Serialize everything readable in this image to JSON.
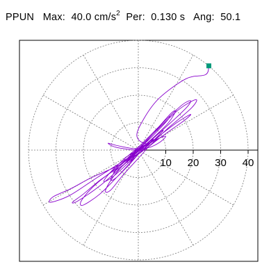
{
  "header": {
    "station": "PPUN",
    "max_label": "Max:",
    "max_value": "40.0",
    "max_unit": "cm/s",
    "max_exp": "2",
    "per_label": "Per:",
    "per_value": "0.130 s",
    "ang_label": "Ang:",
    "ang_value": "50.1"
  },
  "chart_data": {
    "type": "scatter",
    "title": "",
    "radial_ticks": [
      "10",
      "20",
      "30",
      "40"
    ],
    "r_max": 40,
    "grid": true,
    "grid_rings": [
      10,
      20,
      30,
      40
    ],
    "grid_spoke_step_deg": 30,
    "series": [
      {
        "color": "#8800cc",
        "peak_marker": {
          "x": 25.7,
          "y": 30.7,
          "color": "#00997a"
        },
        "points": [
          [
            25.7,
            30.7
          ],
          [
            24.5,
            27.5
          ],
          [
            17.4,
            26.0
          ],
          [
            7.6,
            18.9
          ],
          [
            2.0,
            11.4
          ],
          [
            -0.5,
            5.0
          ],
          [
            4.0,
            2.5
          ],
          [
            12.0,
            9.0
          ],
          [
            19.5,
            15.5
          ],
          [
            21.0,
            18.4
          ],
          [
            15.0,
            15.0
          ],
          [
            7.0,
            7.5
          ],
          [
            0.0,
            0.5
          ],
          [
            -7.0,
            -6.0
          ],
          [
            -14.0,
            -11.0
          ],
          [
            -20.0,
            -16.0
          ],
          [
            -24.0,
            -19.0
          ],
          [
            -22.0,
            -18.5
          ],
          [
            -14.0,
            -13.0
          ],
          [
            -6.0,
            -6.0
          ],
          [
            1.0,
            0.5
          ],
          [
            7.0,
            6.0
          ],
          [
            11.0,
            10.0
          ],
          [
            13.5,
            14.0
          ],
          [
            12.0,
            13.5
          ],
          [
            7.0,
            8.0
          ],
          [
            1.0,
            2.0
          ],
          [
            -6.0,
            -4.0
          ],
          [
            -11.0,
            -9.0
          ],
          [
            -12.5,
            -11.5
          ],
          [
            -9.0,
            -9.5
          ],
          [
            -3.0,
            -4.0
          ],
          [
            3.0,
            2.0
          ],
          [
            9.0,
            7.5
          ],
          [
            14.0,
            12.0
          ],
          [
            18.0,
            16.0
          ],
          [
            19.0,
            18.0
          ],
          [
            16.0,
            16.5
          ],
          [
            10.0,
            11.0
          ],
          [
            3.0,
            4.0
          ],
          [
            -4.0,
            -3.0
          ],
          [
            -10.0,
            -8.0
          ],
          [
            -15.0,
            -12.0
          ],
          [
            -18.5,
            -15.5
          ],
          [
            -21.0,
            -19.0
          ],
          [
            -20.0,
            -20.0
          ],
          [
            -14.0,
            -16.0
          ],
          [
            -7.0,
            -9.0
          ],
          [
            0.0,
            -1.5
          ],
          [
            6.0,
            4.0
          ],
          [
            9.0,
            7.0
          ],
          [
            8.0,
            6.5
          ],
          [
            4.0,
            3.0
          ],
          [
            -1.0,
            -1.0
          ],
          [
            -6.0,
            -6.0
          ],
          [
            -10.0,
            -11.0
          ],
          [
            -12.0,
            -15.0
          ],
          [
            -10.0,
            -14.5
          ],
          [
            -5.5,
            -9.0
          ],
          [
            0.0,
            -3.0
          ],
          [
            4.5,
            2.0
          ],
          [
            7.0,
            4.0
          ],
          [
            6.0,
            3.0
          ],
          [
            2.0,
            0.0
          ],
          [
            -3.0,
            -3.0
          ],
          [
            -8.0,
            -6.0
          ],
          [
            -17.0,
            -10.0
          ],
          [
            -24.5,
            -14.0
          ],
          [
            -31.0,
            -17.0
          ],
          [
            -32.0,
            -19.0
          ],
          [
            -25.0,
            -16.5
          ],
          [
            -15.0,
            -10.0
          ],
          [
            -4.0,
            -3.0
          ],
          [
            6.0,
            4.0
          ],
          [
            14.0,
            10.0
          ],
          [
            19.0,
            13.0
          ],
          [
            17.0,
            11.0
          ],
          [
            10.0,
            6.0
          ],
          [
            2.0,
            0.0
          ],
          [
            -5.0,
            -5.0
          ],
          [
            -9.0,
            -8.0
          ],
          [
            -8.0,
            -7.0
          ],
          [
            -3.0,
            -2.0
          ],
          [
            3.0,
            3.0
          ],
          [
            8.0,
            8.0
          ],
          [
            11.5,
            12.0
          ],
          [
            10.0,
            11.0
          ],
          [
            5.0,
            5.5
          ],
          [
            -1.0,
            -1.0
          ],
          [
            -6.0,
            -5.0
          ],
          [
            -9.0,
            -8.5
          ],
          [
            -10.0,
            -11.0
          ],
          [
            -8.0,
            -10.0
          ],
          [
            -4.0,
            -6.0
          ],
          [
            0.5,
            -1.0
          ],
          [
            4.0,
            2.5
          ],
          [
            5.5,
            4.0
          ],
          [
            4.0,
            3.0
          ],
          [
            1.0,
            0.5
          ],
          [
            -2.0,
            -2.0
          ],
          [
            -4.0,
            -4.0
          ],
          [
            -3.5,
            -4.5
          ],
          [
            -1.0,
            -2.5
          ],
          [
            2.0,
            0.5
          ],
          [
            4.0,
            2.0
          ],
          [
            3.5,
            2.5
          ],
          [
            1.0,
            1.0
          ],
          [
            -1.5,
            -1.0
          ],
          [
            -3.0,
            -2.5
          ],
          [
            -2.0,
            -2.5
          ],
          [
            0.0,
            -1.0
          ],
          [
            2.0,
            1.0
          ],
          [
            2.5,
            2.0
          ],
          [
            1.0,
            1.0
          ],
          [
            -1.0,
            -0.5
          ],
          [
            -2.5,
            -2.0
          ],
          [
            -2.0,
            -2.0
          ],
          [
            0.0,
            -0.5
          ],
          [
            1.5,
            1.0
          ],
          [
            1.0,
            1.0
          ],
          [
            -0.5,
            0.0
          ],
          [
            -8.0,
            1.0
          ],
          [
            -11.0,
            2.5
          ],
          [
            -7.0,
            1.5
          ],
          [
            -1.0,
            0.5
          ],
          [
            4.0,
            1.0
          ],
          [
            8.0,
            3.0
          ],
          [
            10.0,
            5.0
          ],
          [
            8.0,
            4.5
          ],
          [
            3.0,
            2.0
          ],
          [
            -2.0,
            -1.0
          ],
          [
            -5.0,
            -3.0
          ],
          [
            -4.0,
            -3.5
          ],
          [
            -1.0,
            -2.0
          ],
          [
            2.0,
            0.0
          ],
          [
            3.0,
            1.5
          ],
          [
            1.5,
            1.0
          ],
          [
            -0.5,
            -0.5
          ],
          [
            -2.0,
            -1.5
          ],
          [
            -1.0,
            -1.0
          ],
          [
            0.5,
            0.0
          ],
          [
            1.0,
            0.5
          ],
          [
            0.0,
            0.0
          ]
        ]
      }
    ]
  }
}
